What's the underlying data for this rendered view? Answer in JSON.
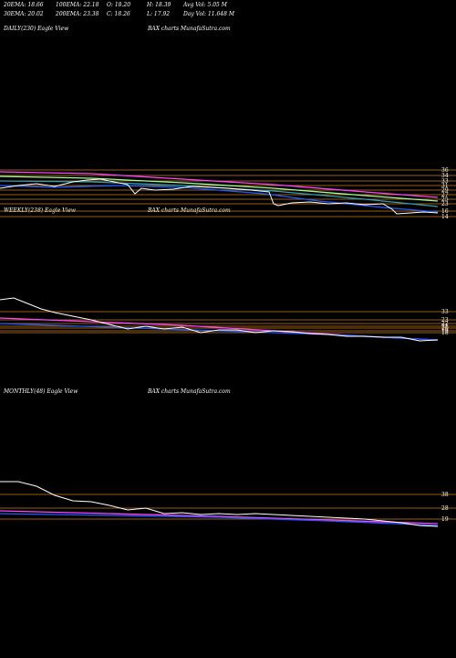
{
  "stats": {
    "row1": [
      {
        "label": "20EMA",
        "value": "18.66"
      },
      {
        "label": "100EMA",
        "value": "22.18"
      },
      {
        "label": "O",
        "value": "18.20"
      },
      {
        "label": "H",
        "value": "18.39"
      },
      {
        "label": "Avg Vol",
        "value": "5.05 M"
      }
    ],
    "row2": [
      {
        "label": "30EMA",
        "value": "20.02"
      },
      {
        "label": "200EMA",
        "value": "23.38"
      },
      {
        "label": "C",
        "value": "18.26"
      },
      {
        "label": "L",
        "value": "17.92"
      },
      {
        "label": "Day Vol",
        "value": "11.648 M"
      }
    ]
  },
  "panels": {
    "daily": {
      "label": "DAILY(230) Eagle  View",
      "site": "BAX  charts MunafaSutra.com"
    },
    "weekly": {
      "label": "WEEKLY(238) Eagle  View",
      "site": "BAX  charts MunafaSutra.com"
    },
    "monthly": {
      "label": "MONTHLY(48) Eagle  View",
      "site": "BAX  charts MunafaSutra.com"
    }
  },
  "chart_data": [
    {
      "type": "line",
      "title": "DAILY(230) Eagle  View",
      "y_ticks": [
        "36",
        "34",
        "33",
        "31",
        "29",
        "27",
        "25",
        "23",
        "16",
        "14"
      ],
      "colors": {
        "price": "#ffffff",
        "ema_fast": "#1e5cff",
        "ema_mid": "#2aa0b8",
        "ema_slow": "#a0ffa0",
        "ema_200": "#ff44ff",
        "levels": "#cc7a1a"
      }
    },
    {
      "type": "line",
      "title": "WEEKLY(238) Eagle  View",
      "y_ticks": [
        "33",
        "23",
        "22",
        "21",
        "20",
        "19",
        "18"
      ],
      "colors": {
        "price": "#ffffff",
        "ema_fast": "#1e5cff",
        "ema_slow": "#ff44ff",
        "levels": "#cc7a1a"
      }
    },
    {
      "type": "line",
      "title": "MONTHLY(48) Eagle  View",
      "y_ticks": [
        "38",
        "28",
        "19"
      ],
      "colors": {
        "price": "#ffffff",
        "ema_fast": "#1e5cff",
        "ema_slow": "#ff44ff",
        "levels": "#cc7a1a"
      }
    }
  ]
}
